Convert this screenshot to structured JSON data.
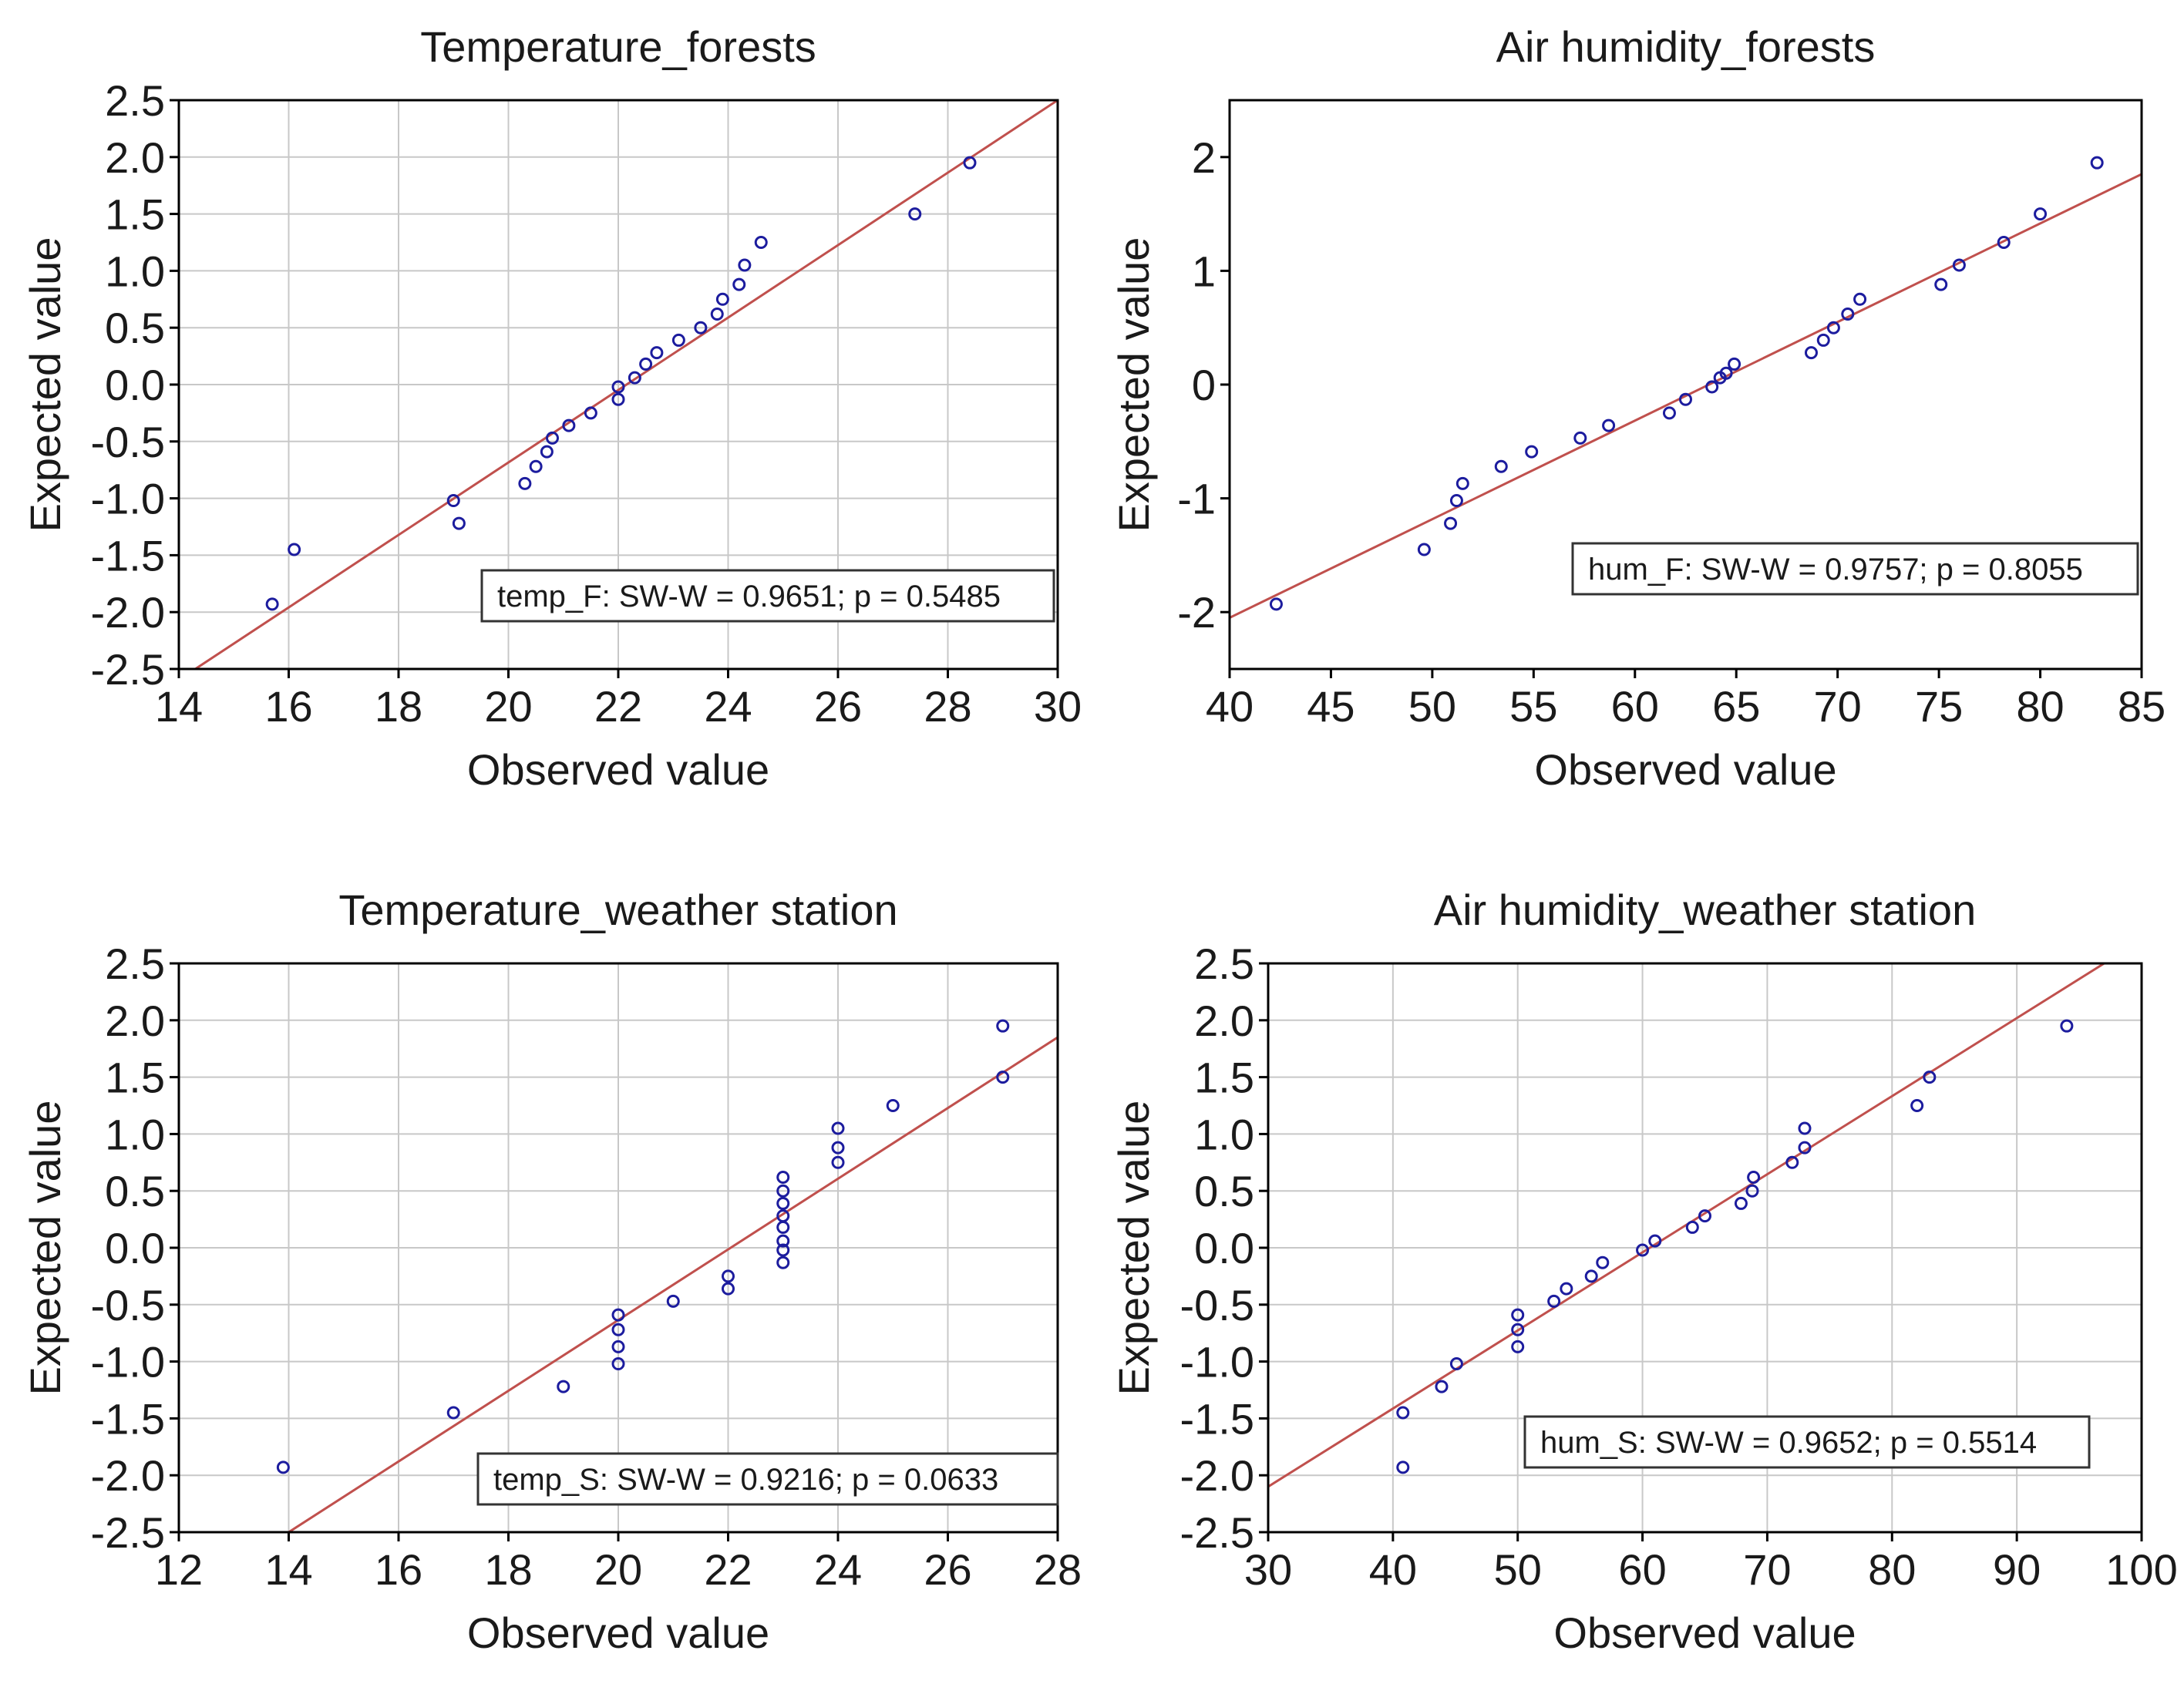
{
  "colors": {
    "fit_line": "#c0504d",
    "points": "#1c1c9e",
    "grid": "#c8c8c8",
    "frame": "#000000"
  },
  "chart_data": [
    {
      "type": "scatter",
      "title": "Temperature_forests",
      "xlabel": "Observed value",
      "ylabel": "Expected value",
      "xlim": [
        14,
        30
      ],
      "ylim": [
        -2.5,
        2.5
      ],
      "xticks": [
        14,
        16,
        18,
        20,
        22,
        24,
        26,
        28,
        30
      ],
      "yticks": [
        -2.5,
        -2.0,
        -1.5,
        -1.0,
        -0.5,
        0.0,
        0.5,
        1.0,
        1.5,
        2.0,
        2.5
      ],
      "tick_decimals": 1,
      "grid": true,
      "legend": "temp_F:  SW-W = 0.9651; p = 0.5485",
      "legend_position": "bottom-right",
      "fit_line": [
        [
          14.3,
          -2.5
        ],
        [
          30.0,
          2.5
        ]
      ],
      "points": [
        [
          15.7,
          -1.93
        ],
        [
          16.1,
          -1.45
        ],
        [
          19.0,
          -1.02
        ],
        [
          19.1,
          -1.22
        ],
        [
          20.3,
          -0.87
        ],
        [
          20.5,
          -0.72
        ],
        [
          20.7,
          -0.59
        ],
        [
          20.8,
          -0.47
        ],
        [
          21.1,
          -0.36
        ],
        [
          21.5,
          -0.25
        ],
        [
          22.0,
          -0.13
        ],
        [
          22.0,
          -0.02
        ],
        [
          22.3,
          0.06
        ],
        [
          22.5,
          0.18
        ],
        [
          22.7,
          0.28
        ],
        [
          23.1,
          0.39
        ],
        [
          23.5,
          0.5
        ],
        [
          23.8,
          0.62
        ],
        [
          23.9,
          0.75
        ],
        [
          24.2,
          0.88
        ],
        [
          24.3,
          1.05
        ],
        [
          24.6,
          1.25
        ],
        [
          27.4,
          1.5
        ],
        [
          28.4,
          1.95
        ]
      ]
    },
    {
      "type": "scatter",
      "title": "Air humidity_forests",
      "xlabel": "Observed value",
      "ylabel": "Expected value",
      "xlim": [
        40,
        85
      ],
      "ylim": [
        -2.5,
        2.5
      ],
      "xticks": [
        40,
        45,
        50,
        55,
        60,
        65,
        70,
        75,
        80,
        85
      ],
      "yticks": [
        -2,
        -1,
        0,
        1,
        2
      ],
      "tick_decimals": 0,
      "grid": false,
      "legend": "hum_F:  SW-W = 0.9757; p = 0.8055",
      "legend_position": "bottom-right",
      "fit_line": [
        [
          40,
          -2.05
        ],
        [
          85,
          1.85
        ]
      ],
      "points": [
        [
          42.3,
          -1.93
        ],
        [
          49.6,
          -1.45
        ],
        [
          50.9,
          -1.22
        ],
        [
          51.2,
          -1.02
        ],
        [
          51.5,
          -0.87
        ],
        [
          53.4,
          -0.72
        ],
        [
          54.9,
          -0.59
        ],
        [
          57.3,
          -0.47
        ],
        [
          58.7,
          -0.36
        ],
        [
          61.7,
          -0.25
        ],
        [
          62.5,
          -0.13
        ],
        [
          63.8,
          -0.02
        ],
        [
          64.2,
          0.06
        ],
        [
          64.5,
          0.1
        ],
        [
          64.9,
          0.18
        ],
        [
          68.7,
          0.28
        ],
        [
          69.3,
          0.39
        ],
        [
          69.8,
          0.5
        ],
        [
          70.5,
          0.62
        ],
        [
          71.1,
          0.75
        ],
        [
          75.1,
          0.88
        ],
        [
          76.0,
          1.05
        ],
        [
          78.2,
          1.25
        ],
        [
          80.0,
          1.5
        ],
        [
          82.8,
          1.95
        ]
      ]
    },
    {
      "type": "scatter",
      "title": "Temperature_weather station",
      "xlabel": "Observed value",
      "ylabel": "Expected value",
      "xlim": [
        12,
        28
      ],
      "ylim": [
        -2.5,
        2.5
      ],
      "xticks": [
        12,
        14,
        16,
        18,
        20,
        22,
        24,
        26,
        28
      ],
      "yticks": [
        -2.5,
        -2.0,
        -1.5,
        -1.0,
        -0.5,
        0.0,
        0.5,
        1.0,
        1.5,
        2.0,
        2.5
      ],
      "tick_decimals": 1,
      "grid": true,
      "legend": "temp_S:  SW-W = 0.9216; p = 0.0633",
      "legend_position": "bottom-right",
      "fit_line": [
        [
          14.0,
          -2.5
        ],
        [
          28.0,
          1.85
        ]
      ],
      "points": [
        [
          13.9,
          -1.93
        ],
        [
          17.0,
          -1.45
        ],
        [
          19.0,
          -1.22
        ],
        [
          20.0,
          -1.02
        ],
        [
          20.0,
          -0.87
        ],
        [
          20.0,
          -0.72
        ],
        [
          20.0,
          -0.59
        ],
        [
          21.0,
          -0.47
        ],
        [
          22.0,
          -0.36
        ],
        [
          22.0,
          -0.25
        ],
        [
          23.0,
          -0.13
        ],
        [
          23.0,
          -0.02
        ],
        [
          23.0,
          0.06
        ],
        [
          23.0,
          0.18
        ],
        [
          23.0,
          0.28
        ],
        [
          23.0,
          0.39
        ],
        [
          23.0,
          0.5
        ],
        [
          23.0,
          0.62
        ],
        [
          24.0,
          0.75
        ],
        [
          24.0,
          0.88
        ],
        [
          24.0,
          1.05
        ],
        [
          25.0,
          1.25
        ],
        [
          27.0,
          1.5
        ],
        [
          27.0,
          1.95
        ]
      ]
    },
    {
      "type": "scatter",
      "title": "Air humidity_weather station",
      "xlabel": "Observed value",
      "ylabel": "Expected value",
      "xlim": [
        30,
        100
      ],
      "ylim": [
        -2.5,
        2.5
      ],
      "xticks": [
        30,
        40,
        50,
        60,
        70,
        80,
        90,
        100
      ],
      "yticks": [
        -2.5,
        -2.0,
        -1.5,
        -1.0,
        -0.5,
        0.0,
        0.5,
        1.0,
        1.5,
        2.0,
        2.5
      ],
      "tick_decimals": 1,
      "grid": true,
      "legend": "hum_S:  SW-W = 0.9652; p = 0.5514",
      "legend_position": "bottom-right",
      "fit_line": [
        [
          30,
          -2.1
        ],
        [
          97,
          2.5
        ]
      ],
      "points": [
        [
          40.8,
          -1.93
        ],
        [
          40.8,
          -1.45
        ],
        [
          43.9,
          -1.22
        ],
        [
          45.1,
          -1.02
        ],
        [
          50.0,
          -0.87
        ],
        [
          50.0,
          -0.72
        ],
        [
          50.0,
          -0.59
        ],
        [
          52.9,
          -0.47
        ],
        [
          53.9,
          -0.36
        ],
        [
          55.9,
          -0.25
        ],
        [
          56.8,
          -0.13
        ],
        [
          60.0,
          -0.02
        ],
        [
          61.0,
          0.06
        ],
        [
          64.0,
          0.18
        ],
        [
          65.0,
          0.28
        ],
        [
          67.9,
          0.39
        ],
        [
          68.8,
          0.5
        ],
        [
          68.9,
          0.62
        ],
        [
          72.0,
          0.75
        ],
        [
          73.0,
          0.88
        ],
        [
          73.0,
          1.05
        ],
        [
          82.0,
          1.25
        ],
        [
          83.0,
          1.5
        ],
        [
          94.0,
          1.95
        ]
      ]
    }
  ]
}
